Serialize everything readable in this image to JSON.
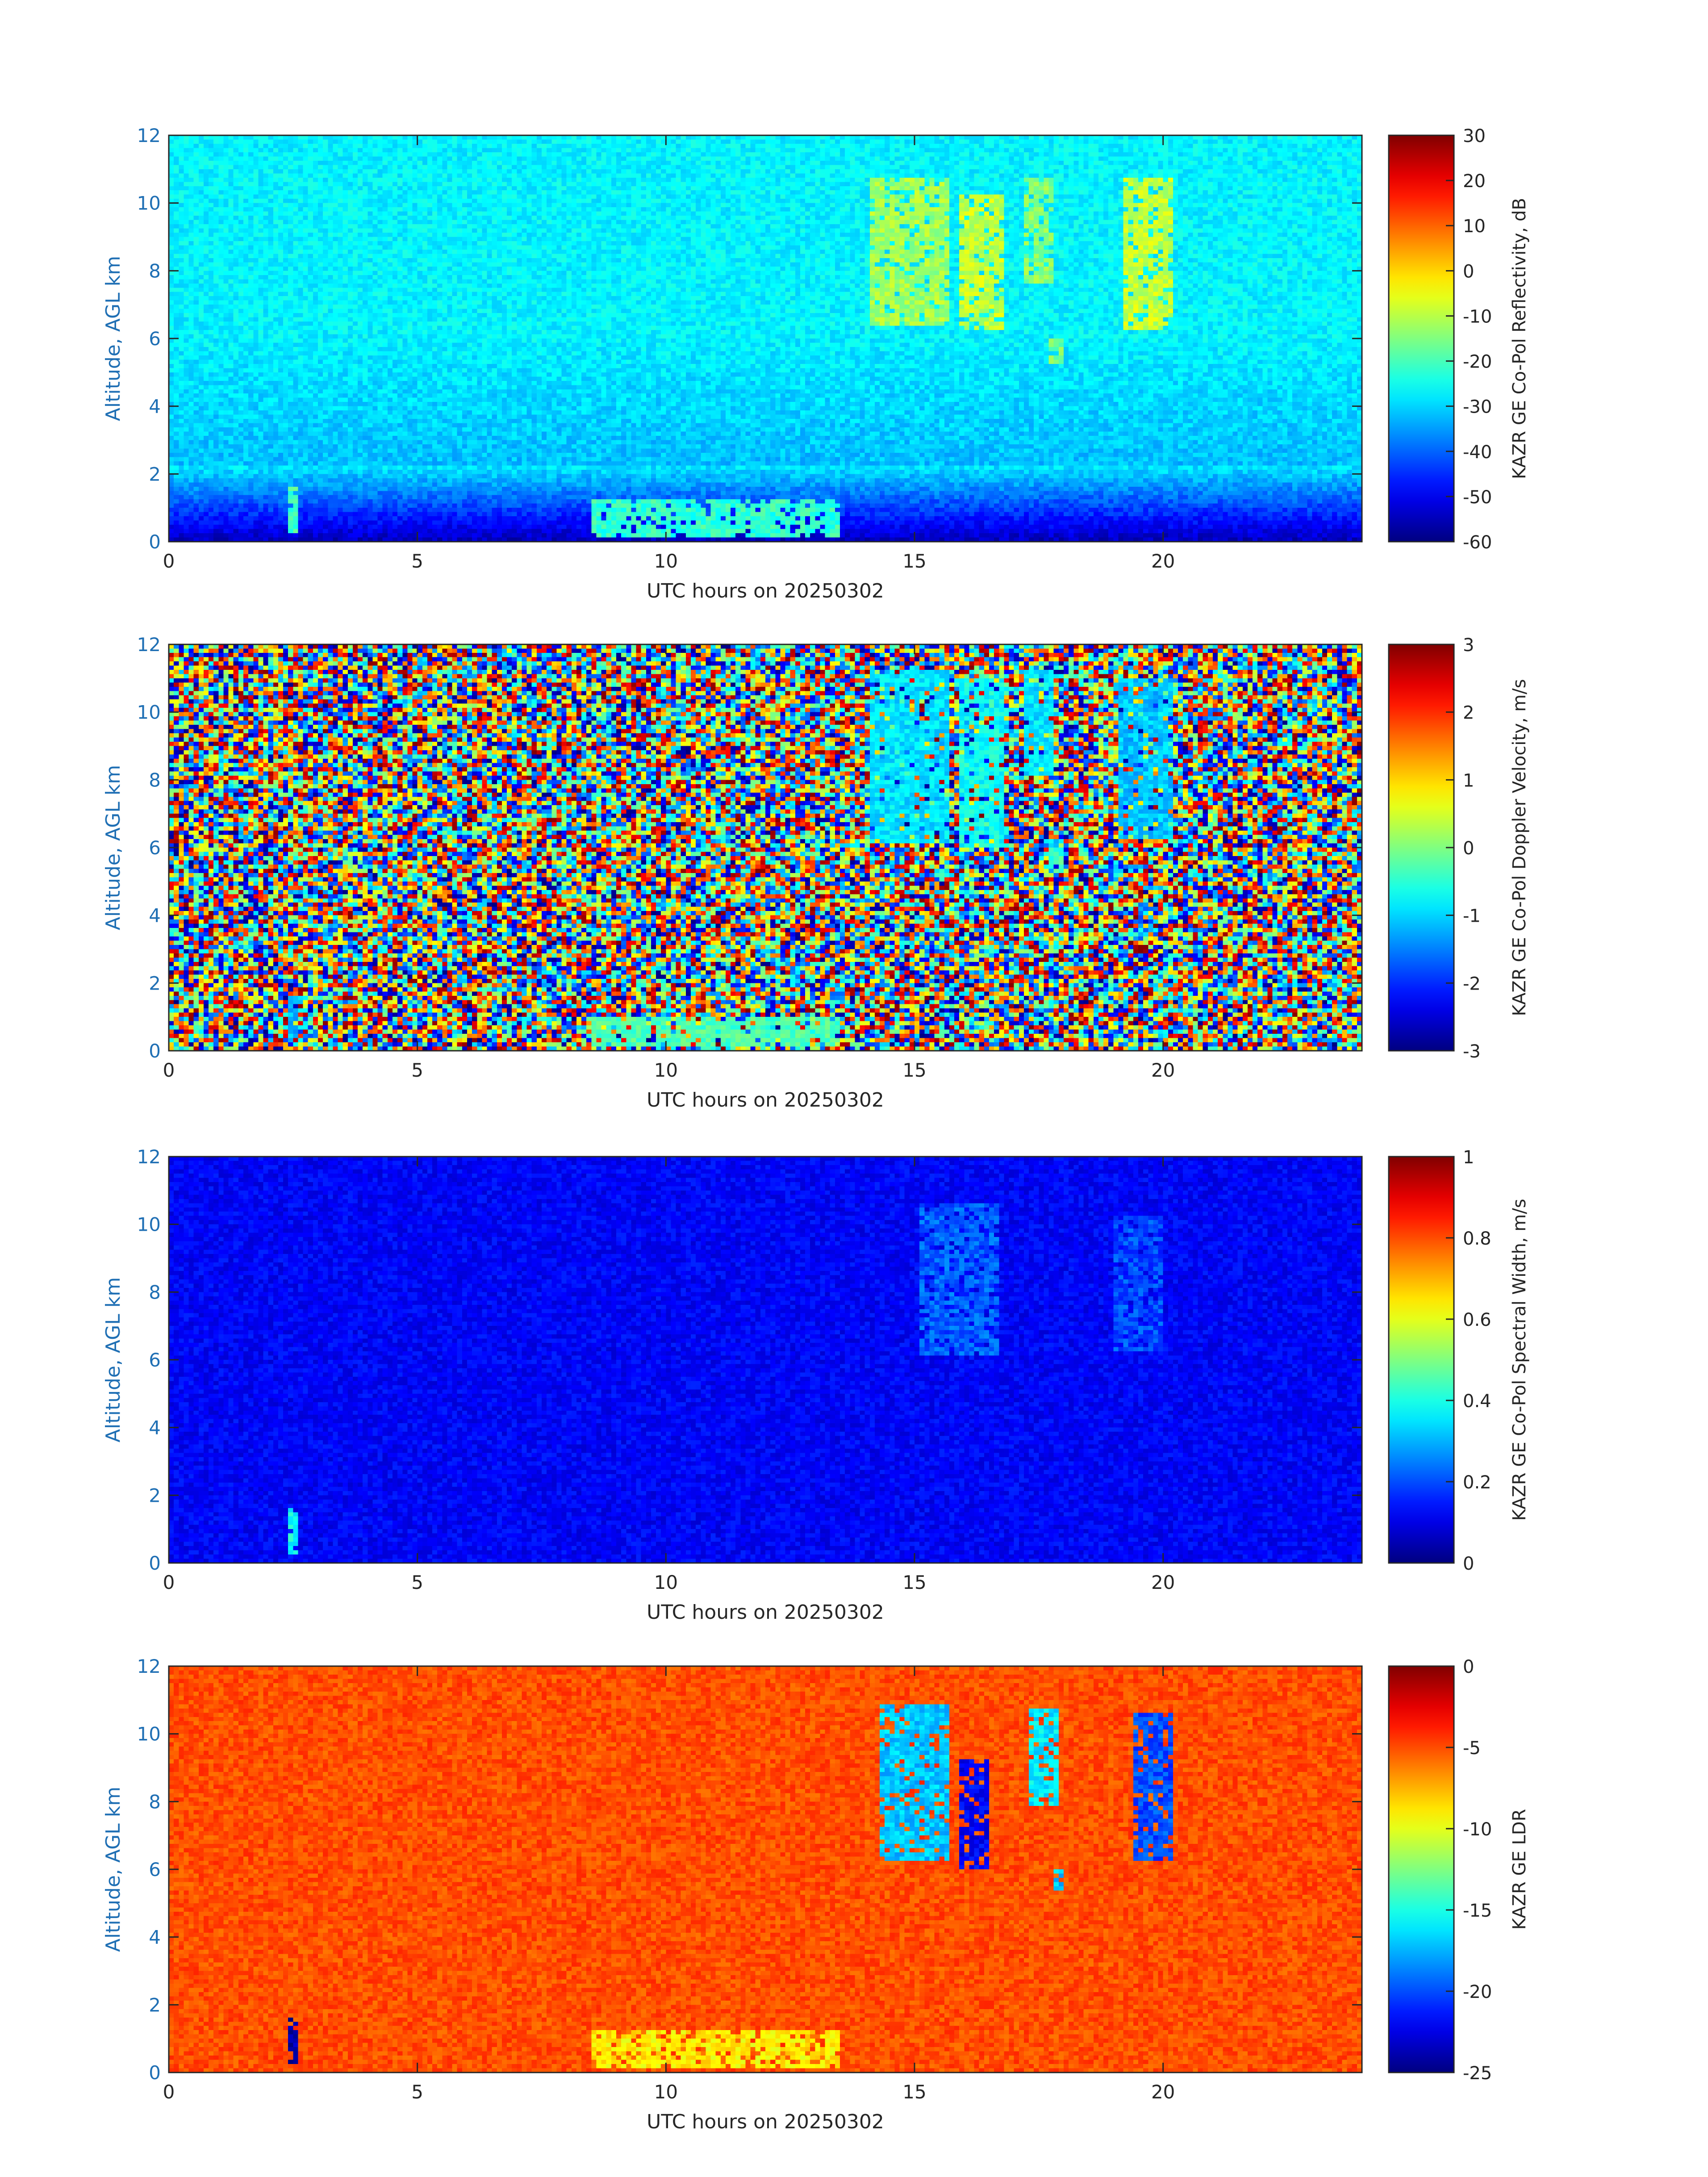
{
  "figure": {
    "background": "#ffffff",
    "axis_label_color": "#1f6fb4",
    "tick_text_color": "#262626"
  },
  "chart_data": [
    {
      "type": "heatmap",
      "panel": "reflectivity",
      "xlabel": "UTC hours on 20250302",
      "ylabel": "Altitude, AGL km",
      "xlim": [
        0,
        24
      ],
      "ylim": [
        0,
        12
      ],
      "xticks": [
        "0",
        "5",
        "10",
        "15",
        "20"
      ],
      "yticks": [
        "0",
        "2",
        "4",
        "6",
        "8",
        "10",
        "12"
      ],
      "colorbar": {
        "label": "KAZR GE Co-Pol Reflectivity, dB",
        "min": -60,
        "max": 30,
        "ticks": [
          "-60",
          "-50",
          "-40",
          "-30",
          "-20",
          "-10",
          "0",
          "10",
          "20",
          "30"
        ],
        "colormap": "jet"
      },
      "background_level": -27,
      "features": [
        {
          "t": 14.9,
          "h0": 6.4,
          "h1": 10.8,
          "w": 1.5,
          "v": -12
        },
        {
          "t": 16.3,
          "h0": 6.2,
          "h1": 10.2,
          "w": 0.9,
          "v": -9
        },
        {
          "t": 17.5,
          "h0": 7.6,
          "h1": 10.8,
          "w": 0.6,
          "v": -14
        },
        {
          "t": 19.7,
          "h0": 6.3,
          "h1": 10.8,
          "w": 1.0,
          "v": -9
        },
        {
          "t": 17.9,
          "h0": 5.2,
          "h1": 6.0,
          "w": 0.3,
          "v": -16
        },
        {
          "t": 2.5,
          "h0": 0.2,
          "h1": 1.6,
          "w": 0.25,
          "v": -20
        },
        {
          "t": 11.0,
          "h0": 0.1,
          "h1": 1.3,
          "w": 5.0,
          "v": -22
        }
      ]
    },
    {
      "type": "heatmap",
      "panel": "doppler_velocity",
      "xlabel": "UTC hours on 20250302",
      "ylabel": "Altitude, AGL km",
      "xlim": [
        0,
        24
      ],
      "ylim": [
        0,
        12
      ],
      "xticks": [
        "0",
        "5",
        "10",
        "15",
        "20"
      ],
      "yticks": [
        "0",
        "2",
        "4",
        "6",
        "8",
        "10",
        "12"
      ],
      "colorbar": {
        "label": "KAZR GE Co-Pol Doppler Velocity, m/s",
        "min": -3,
        "max": 3,
        "ticks": [
          "-3",
          "-2",
          "-1",
          "0",
          "1",
          "2",
          "3"
        ],
        "colormap": "jet"
      },
      "background_level": "noise",
      "features": [
        {
          "t": 14.9,
          "h0": 6.1,
          "h1": 11.2,
          "w": 1.6,
          "v": -0.9
        },
        {
          "t": 16.3,
          "h0": 6.0,
          "h1": 11.0,
          "w": 0.9,
          "v": -0.7
        },
        {
          "t": 17.5,
          "h0": 8.1,
          "h1": 11.2,
          "w": 0.6,
          "v": -0.9
        },
        {
          "t": 19.6,
          "h0": 6.2,
          "h1": 11.0,
          "w": 1.1,
          "v": -1.1
        },
        {
          "t": 17.9,
          "h0": 5.2,
          "h1": 6.0,
          "w": 0.3,
          "v": -0.4
        },
        {
          "t": 2.5,
          "h0": 0.2,
          "h1": 1.6,
          "w": 0.25,
          "v": -1.2
        },
        {
          "t": 11.0,
          "h0": 0.1,
          "h1": 1.0,
          "w": 5.0,
          "v": -0.3
        }
      ]
    },
    {
      "type": "heatmap",
      "panel": "spectral_width",
      "xlabel": "UTC hours on 20250302",
      "ylabel": "Altitude, AGL km",
      "xlim": [
        0,
        24
      ],
      "ylim": [
        0,
        12
      ],
      "xticks": [
        "0",
        "5",
        "10",
        "15",
        "20"
      ],
      "yticks": [
        "0",
        "2",
        "4",
        "6",
        "8",
        "10",
        "12"
      ],
      "colorbar": {
        "label": "KAZR GE Co-Pol Spectral Width, m/s",
        "min": 0,
        "max": 1,
        "ticks": [
          "0",
          "0.2",
          "0.4",
          "0.6",
          "0.8",
          "1"
        ],
        "colormap": "jet"
      },
      "background_level": 0.12,
      "features": [
        {
          "t": 15.9,
          "h0": 6.1,
          "h1": 10.6,
          "w": 1.6,
          "v": 0.22
        },
        {
          "t": 19.5,
          "h0": 6.2,
          "h1": 10.2,
          "w": 1.0,
          "v": 0.2
        },
        {
          "t": 2.5,
          "h0": 0.2,
          "h1": 1.6,
          "w": 0.25,
          "v": 0.38
        }
      ]
    },
    {
      "type": "heatmap",
      "panel": "ldr",
      "xlabel": "UTC hours on 20250302",
      "ylabel": "Altitude, AGL km",
      "xlim": [
        0,
        24
      ],
      "ylim": [
        0,
        12
      ],
      "xticks": [
        "0",
        "5",
        "10",
        "15",
        "20"
      ],
      "yticks": [
        "0",
        "2",
        "4",
        "6",
        "8",
        "10",
        "12"
      ],
      "colorbar": {
        "label": "KAZR GE LDR",
        "min": -25,
        "max": 0,
        "ticks": [
          "-25",
          "-20",
          "-15",
          "-10",
          "-5",
          "0"
        ],
        "colormap": "jet"
      },
      "background_level": -5,
      "features": [
        {
          "t": 15.0,
          "h0": 6.2,
          "h1": 10.9,
          "w": 1.4,
          "v": -17
        },
        {
          "t": 16.2,
          "h0": 6.0,
          "h1": 9.2,
          "w": 0.6,
          "v": -22
        },
        {
          "t": 17.6,
          "h0": 7.9,
          "h1": 10.7,
          "w": 0.5,
          "v": -16
        },
        {
          "t": 19.8,
          "h0": 6.3,
          "h1": 10.6,
          "w": 0.8,
          "v": -20
        },
        {
          "t": 17.9,
          "h0": 5.4,
          "h1": 6.0,
          "w": 0.2,
          "v": -17
        },
        {
          "t": 2.5,
          "h0": 0.2,
          "h1": 1.6,
          "w": 0.2,
          "v": -24
        },
        {
          "t": 11.0,
          "h0": 0.1,
          "h1": 1.2,
          "w": 5.0,
          "v": -9
        }
      ]
    }
  ]
}
